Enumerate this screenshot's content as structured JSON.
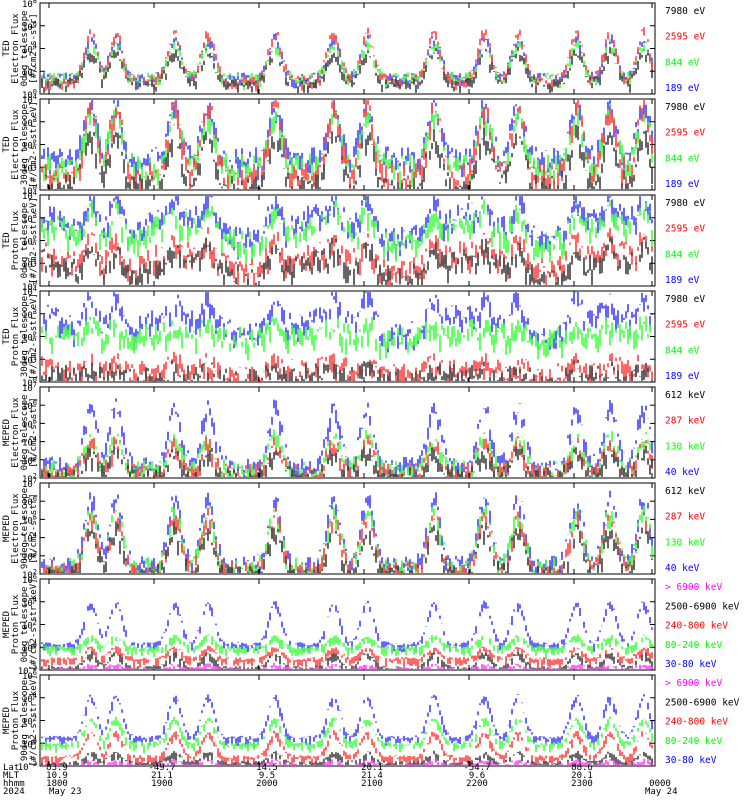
{
  "colors": {
    "blue": "#0000ff",
    "red": "#ff0000",
    "green": "#00ff00",
    "black": "#000000",
    "magenta": "#ff00ff"
  },
  "panels": [
    {
      "ylabel": [
        "TED",
        "Electron Flux",
        "0deg telescope",
        "[#/cm2-s-str]"
      ],
      "yticks": [
        "10^8",
        "10^6",
        "10^4",
        "10^2",
        "10^0"
      ],
      "legend": [
        {
          "text": "7980 eV",
          "color": "black"
        },
        {
          "text": "2595 eV",
          "color": "red"
        },
        {
          "text": "844 eV",
          "color": "green"
        },
        {
          "text": "189 eV",
          "color": "blue"
        }
      ]
    },
    {
      "ylabel": [
        "TED",
        "Electron Flux",
        "30deg telescope",
        "[#/cm2-s-str-eV]"
      ],
      "yticks": [
        "10^4",
        "10^3",
        "10^2",
        "10^1",
        "10^0"
      ],
      "legend": [
        {
          "text": "7980 eV",
          "color": "black"
        },
        {
          "text": "2595 eV",
          "color": "red"
        },
        {
          "text": "844 eV",
          "color": "green"
        },
        {
          "text": "189 eV",
          "color": "blue"
        }
      ]
    },
    {
      "ylabel": [
        "TED",
        "Proton Flux",
        "0deg telescope",
        "[#/cm2-s-str-eV]"
      ],
      "yticks": [
        "10^4",
        "10^3",
        "10^2",
        "10^1",
        "10^0"
      ],
      "legend": [
        {
          "text": "7980 eV",
          "color": "black"
        },
        {
          "text": "2595 eV",
          "color": "red"
        },
        {
          "text": "844 eV",
          "color": "green"
        },
        {
          "text": "189 eV",
          "color": "blue"
        }
      ]
    },
    {
      "ylabel": [
        "TED",
        "Proton Flux",
        "30deg telescope",
        "[#/cm2-s-str-eV]"
      ],
      "yticks": [
        "10^4",
        "10^3",
        "10^2",
        "10^1",
        "10^0"
      ],
      "legend": [
        {
          "text": "7980 eV",
          "color": "black"
        },
        {
          "text": "2595 eV",
          "color": "red"
        },
        {
          "text": "844 eV",
          "color": "green"
        },
        {
          "text": "189 eV",
          "color": "blue"
        }
      ]
    },
    {
      "ylabel": [
        "MEPED",
        "Electron Flux",
        "0deg telescope",
        "[#/cm2-s-str]"
      ],
      "yticks": [
        "10^7",
        "10^6",
        "10^5",
        "10^4",
        "10^3",
        "10^2"
      ],
      "legend": [
        {
          "text": "612 keV",
          "color": "black"
        },
        {
          "text": "287 keV",
          "color": "red"
        },
        {
          "text": "130 keV",
          "color": "green"
        },
        {
          "text": "40 keV",
          "color": "blue"
        }
      ]
    },
    {
      "ylabel": [
        "MEPED",
        "Electron Flux",
        "90deg telescope",
        "[#/cm2-s-str]"
      ],
      "yticks": [
        "10^7",
        "10^6",
        "10^5",
        "10^4",
        "10^3",
        "10^2"
      ],
      "legend": [
        {
          "text": "612 keV",
          "color": "black"
        },
        {
          "text": "287 keV",
          "color": "red"
        },
        {
          "text": "130 keV",
          "color": "green"
        },
        {
          "text": "40 keV",
          "color": "blue"
        }
      ]
    },
    {
      "ylabel": [
        "MEPED",
        "Proton Flux",
        "0deg telescope",
        "[#/cm2-s-str-keV]"
      ],
      "yticks": [
        "10^6",
        "10^4",
        "10^2",
        "10^0",
        "10^-2"
      ],
      "legend": [
        {
          "text": "> 6900 keV",
          "color": "magenta"
        },
        {
          "text": "2500-6900 keV",
          "color": "black"
        },
        {
          "text": "240-800 keV",
          "color": "red"
        },
        {
          "text": "80-240 keV",
          "color": "green"
        },
        {
          "text": "30-80 keV",
          "color": "blue"
        }
      ]
    },
    {
      "ylabel": [
        "MEPED",
        "Proton Flux",
        "90deg telescope",
        "[#/cm2-s-str-keV]"
      ],
      "yticks": [
        "10^6",
        "10^4",
        "10^2",
        "10^0",
        "10^-2"
      ],
      "legend": [
        {
          "text": "> 6900 keV",
          "color": "magenta"
        },
        {
          "text": "2500-6900 keV",
          "color": "black"
        },
        {
          "text": "240-800 keV",
          "color": "red"
        },
        {
          "text": "80-240 keV",
          "color": "green"
        },
        {
          "text": "30-80 keV",
          "color": "blue"
        }
      ]
    }
  ],
  "footer": {
    "row_labels": [
      "Lat",
      "MLT",
      "hhmm",
      "2024"
    ],
    "lat": [
      "83.9",
      "-49.7",
      "14.5",
      "20.1",
      "-54.7",
      "88.6"
    ],
    "mlt": [
      "10.9",
      "21.1",
      "9.5",
      "21.4",
      "9.6",
      "20.1"
    ],
    "hhmm": [
      "1800",
      "1900",
      "2000",
      "2100",
      "2200",
      "2300",
      "0000"
    ],
    "date_start": "May 23",
    "date_end": "May 24"
  },
  "chart_data": {
    "type": "line",
    "x_label": "UT (hhmm), 2024 May 23 18:00 to May 24 00:00",
    "x_range": [
      "1800",
      "0000"
    ],
    "orbit_peaks_hhmm": [
      "1825",
      "1840",
      "1915",
      "1935",
      "2015",
      "2050",
      "2110",
      "2150",
      "2220",
      "2240",
      "2315",
      "2335",
      "2355"
    ],
    "panels": [
      {
        "instrument": "TED",
        "quantity": "Electron Flux",
        "telescope": "0deg",
        "units": "#/cm2-s-str",
        "log_range": [
          0,
          8
        ],
        "series": [
          {
            "name": "7980 eV",
            "color": "black",
            "typical_log": 1.0,
            "peak_log": 3.8
          },
          {
            "name": "2595 eV",
            "color": "red",
            "typical_log": 1.3,
            "peak_log": 5.5
          },
          {
            "name": "844 eV",
            "color": "green",
            "typical_log": 1.5,
            "peak_log": 4.5
          },
          {
            "name": "189 eV",
            "color": "blue",
            "typical_log": 1.5,
            "peak_log": 5.0
          }
        ]
      },
      {
        "instrument": "TED",
        "quantity": "Electron Flux",
        "telescope": "30deg",
        "units": "#/cm2-s-str-eV",
        "log_range": [
          0,
          4
        ],
        "series": [
          {
            "name": "7980 eV",
            "color": "black",
            "typical_log": 0.3,
            "peak_log": 2.5
          },
          {
            "name": "2595 eV",
            "color": "red",
            "typical_log": 0.8,
            "peak_log": 3.8
          },
          {
            "name": "844 eV",
            "color": "green",
            "typical_log": 1.2,
            "peak_log": 3.5
          },
          {
            "name": "189 eV",
            "color": "blue",
            "typical_log": 1.5,
            "peak_log": 3.8
          }
        ]
      },
      {
        "instrument": "TED",
        "quantity": "Proton Flux",
        "telescope": "0deg",
        "units": "#/cm2-s-str-eV",
        "log_range": [
          0,
          4
        ],
        "series": [
          {
            "name": "7980 eV",
            "color": "black",
            "typical_log": 0.5,
            "peak_log": 1.8
          },
          {
            "name": "2595 eV",
            "color": "red",
            "typical_log": 0.8,
            "peak_log": 2.2
          },
          {
            "name": "844 eV",
            "color": "green",
            "typical_log": 2.0,
            "peak_log": 3.5
          },
          {
            "name": "189 eV",
            "color": "blue",
            "typical_log": 2.2,
            "peak_log": 4.0
          }
        ]
      },
      {
        "instrument": "TED",
        "quantity": "Proton Flux",
        "telescope": "30deg",
        "units": "#/cm2-s-str-eV",
        "log_range": [
          0,
          4
        ],
        "series": [
          {
            "name": "7980 eV",
            "color": "black",
            "typical_log": 0.2,
            "peak_log": 0.6
          },
          {
            "name": "2595 eV",
            "color": "red",
            "typical_log": 0.4,
            "peak_log": 1.0
          },
          {
            "name": "844 eV",
            "color": "green",
            "typical_log": 2.0,
            "peak_log": 2.6
          },
          {
            "name": "189 eV",
            "color": "blue",
            "typical_log": 2.2,
            "peak_log": 3.8
          }
        ]
      },
      {
        "instrument": "MEPED",
        "quantity": "Electron Flux",
        "telescope": "0deg",
        "units": "#/cm2-s-str",
        "log_range": [
          2,
          7
        ],
        "series": [
          {
            "name": "612 keV",
            "color": "black",
            "typical_log": 2.2,
            "peak_log": 3.5
          },
          {
            "name": "287 keV",
            "color": "red",
            "typical_log": 2.4,
            "peak_log": 4.0
          },
          {
            "name": "130 keV",
            "color": "green",
            "typical_log": 2.6,
            "peak_log": 4.3
          },
          {
            "name": "40 keV",
            "color": "blue",
            "typical_log": 2.8,
            "peak_log": 6.0
          }
        ]
      },
      {
        "instrument": "MEPED",
        "quantity": "Electron Flux",
        "telescope": "90deg",
        "units": "#/cm2-s-str",
        "log_range": [
          2,
          7
        ],
        "series": [
          {
            "name": "612 keV",
            "color": "black",
            "typical_log": 2.1,
            "peak_log": 4.5
          },
          {
            "name": "287 keV",
            "color": "red",
            "typical_log": 2.3,
            "peak_log": 5.3
          },
          {
            "name": "130 keV",
            "color": "green",
            "typical_log": 2.5,
            "peak_log": 5.6
          },
          {
            "name": "40 keV",
            "color": "blue",
            "typical_log": 2.6,
            "peak_log": 6.3
          }
        ]
      },
      {
        "instrument": "MEPED",
        "quantity": "Proton Flux",
        "telescope": "0deg",
        "units": "#/cm2-s-str-keV",
        "log_range": [
          -2,
          6
        ],
        "series": [
          {
            "name": "> 6900 keV",
            "color": "magenta",
            "typical_log": -1.9,
            "peak_log": -1.5
          },
          {
            "name": "2500-6900 keV",
            "color": "black",
            "typical_log": -1.8,
            "peak_log": -0.5
          },
          {
            "name": "240-800 keV",
            "color": "red",
            "typical_log": -1.0,
            "peak_log": 0.0
          },
          {
            "name": "80-240 keV",
            "color": "green",
            "typical_log": 0.0,
            "peak_log": 1.0
          },
          {
            "name": "30-80 keV",
            "color": "blue",
            "typical_log": 0.3,
            "peak_log": 4.0
          }
        ]
      },
      {
        "instrument": "MEPED",
        "quantity": "Proton Flux",
        "telescope": "90deg",
        "units": "#/cm2-s-str-keV",
        "log_range": [
          -2,
          6
        ],
        "series": [
          {
            "name": "> 6900 keV",
            "color": "magenta",
            "typical_log": -1.9,
            "peak_log": -1.5
          },
          {
            "name": "2500-6900 keV",
            "color": "black",
            "typical_log": -1.7,
            "peak_log": -0.8
          },
          {
            "name": "240-800 keV",
            "color": "red",
            "typical_log": -1.2,
            "peak_log": 1.0
          },
          {
            "name": "80-240 keV",
            "color": "green",
            "typical_log": 0.0,
            "peak_log": 2.2
          },
          {
            "name": "30-80 keV",
            "color": "blue",
            "typical_log": 0.5,
            "peak_log": 4.2
          }
        ]
      }
    ]
  }
}
